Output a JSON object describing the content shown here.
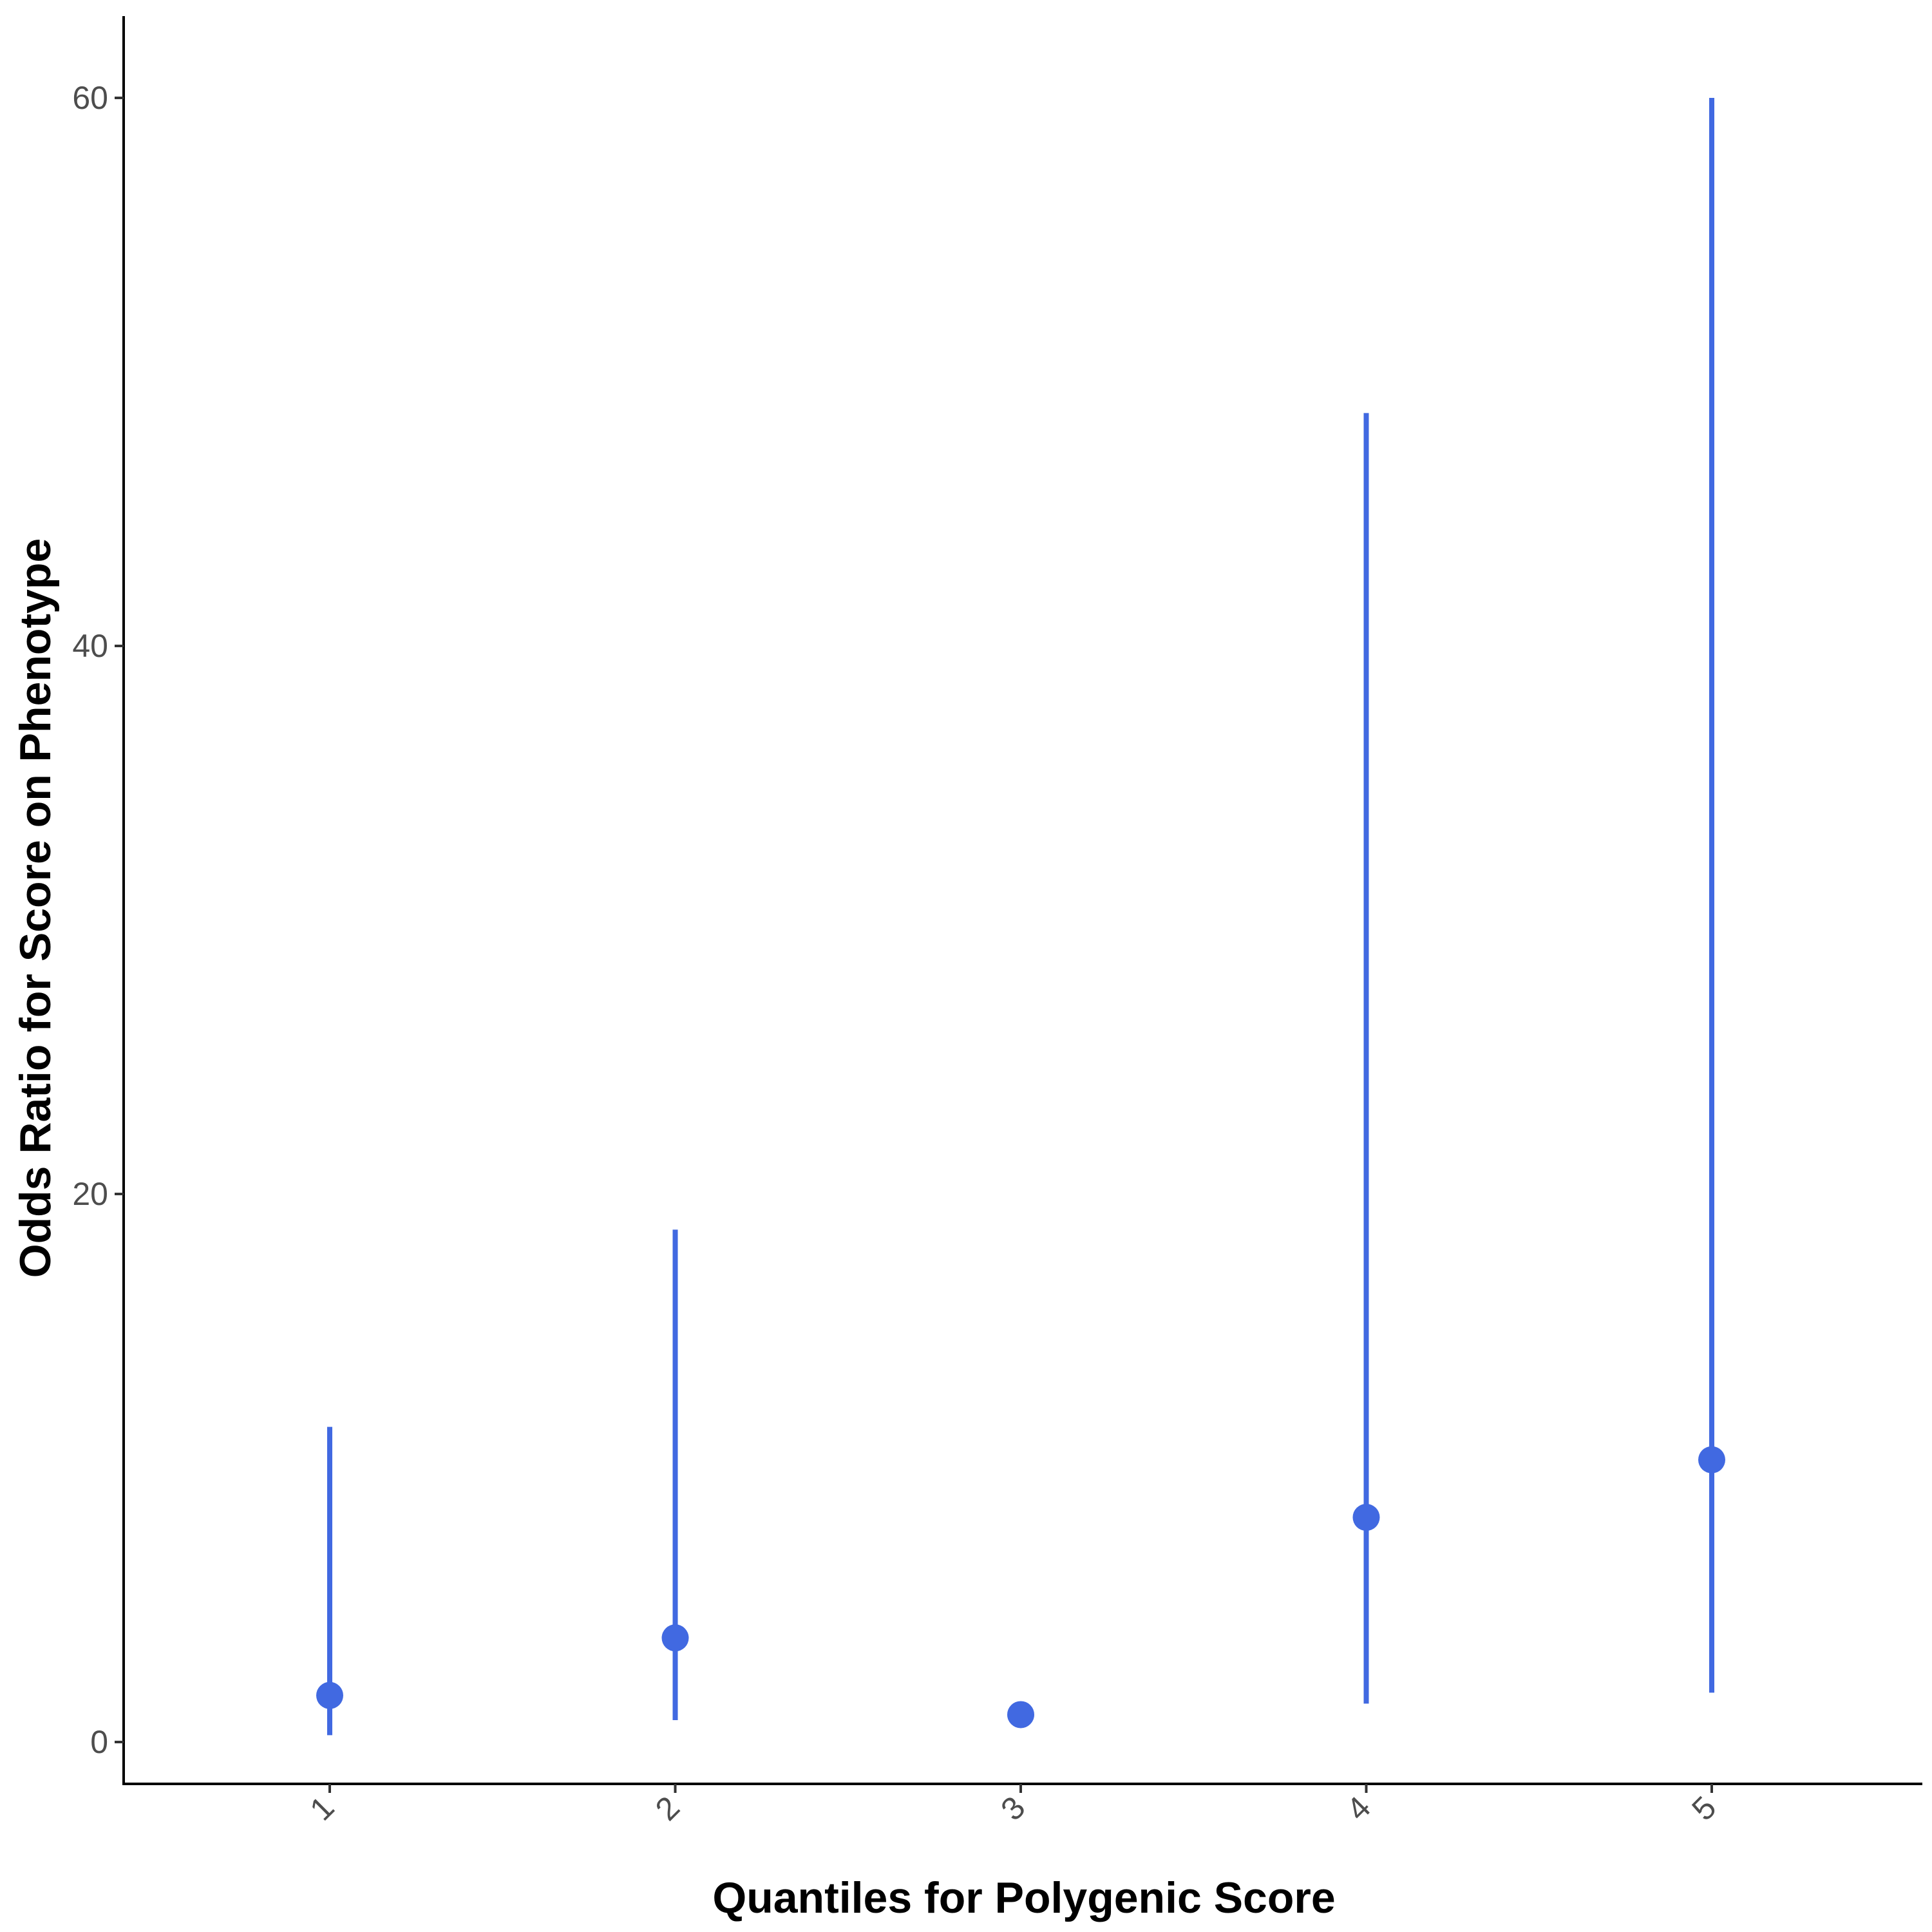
{
  "chart_data": {
    "type": "scatter",
    "title": "",
    "xlabel": "Quantiles for Polygenic Score",
    "ylabel": "Odds Ratio for Score on Phenotype",
    "categories": [
      "1",
      "2",
      "3",
      "4",
      "5"
    ],
    "series": [
      {
        "points": [
          {
            "x": "1",
            "y": 1.7,
            "lower": 0.25,
            "upper": 11.5
          },
          {
            "x": "2",
            "y": 3.8,
            "lower": 0.8,
            "upper": 18.7
          },
          {
            "x": "3",
            "y": 1.0,
            "lower": null,
            "upper": null
          },
          {
            "x": "4",
            "y": 8.2,
            "lower": 1.4,
            "upper": 48.5
          },
          {
            "x": "5",
            "y": 10.3,
            "lower": 1.8,
            "upper": 60.0
          }
        ]
      }
    ],
    "yticks": [
      0,
      20,
      40,
      60
    ],
    "ylim": [
      -2.5,
      62.9
    ],
    "grid": false,
    "legend": "none",
    "colors": {
      "point": "#4169e1",
      "errorbar": "#4169e1",
      "axis": "#000000",
      "tick_text": "#4d4d4d"
    }
  }
}
